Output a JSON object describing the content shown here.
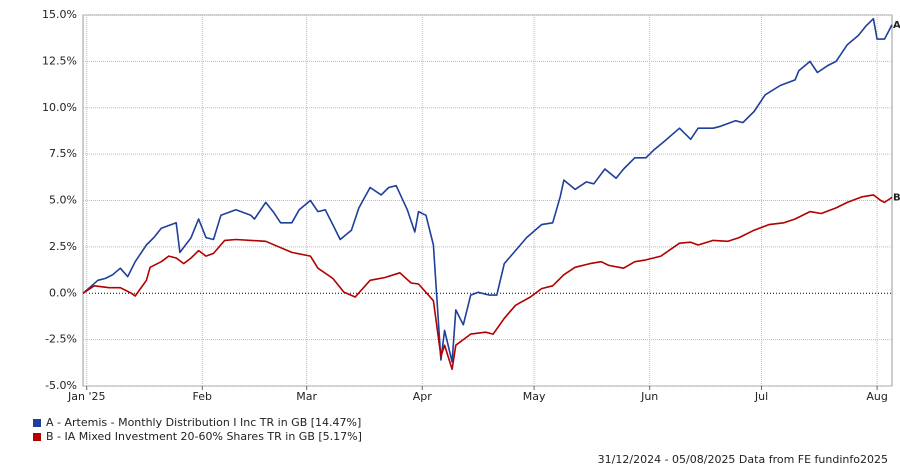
{
  "chart_data": {
    "type": "line",
    "xlim": [
      0,
      217
    ],
    "xticks": [
      {
        "value": 1,
        "label": "Jan '25"
      },
      {
        "value": 32,
        "label": "Feb"
      },
      {
        "value": 60,
        "label": "Mar"
      },
      {
        "value": 91,
        "label": "Apr"
      },
      {
        "value": 121,
        "label": "May"
      },
      {
        "value": 152,
        "label": "Jun"
      },
      {
        "value": 182,
        "label": "Jul"
      },
      {
        "value": 213,
        "label": "Aug"
      }
    ],
    "ylim": [
      -5,
      15
    ],
    "yticks": [
      {
        "value": -5,
        "label": "-5.0%"
      },
      {
        "value": -2.5,
        "label": "-2.5%"
      },
      {
        "value": 0,
        "label": "0.0%"
      },
      {
        "value": 2.5,
        "label": "2.5%"
      },
      {
        "value": 5,
        "label": "5.0%"
      },
      {
        "value": 7.5,
        "label": "7.5%"
      },
      {
        "value": 10,
        "label": "10.0%"
      },
      {
        "value": 12.5,
        "label": "12.5%"
      },
      {
        "value": 15,
        "label": "15.0%"
      }
    ],
    "grid": true,
    "series": [
      {
        "name": "A - Artemis - Monthly Distribution I Inc TR in GB [14.47%]",
        "end_label": "A",
        "color": "#1f3f99",
        "x": [
          0,
          4,
          6,
          8,
          10,
          12,
          14,
          17,
          19,
          21,
          25,
          26,
          29,
          31,
          33,
          35,
          37,
          41,
          45,
          46,
          49,
          51,
          53,
          56,
          58,
          61,
          63,
          65,
          67,
          69,
          72,
          74,
          77,
          80,
          82,
          84,
          87,
          89,
          90,
          92,
          94,
          96,
          97,
          99,
          100,
          102,
          104,
          106,
          109,
          111,
          113,
          116,
          119,
          123,
          126,
          128,
          129,
          132,
          135,
          137,
          140,
          143,
          145,
          148,
          151,
          153,
          156,
          160,
          163,
          165,
          169,
          171,
          175,
          177,
          180,
          183,
          187,
          191,
          192,
          195,
          197,
          200,
          202,
          205,
          208,
          210,
          212,
          213,
          215,
          217
        ],
        "values": [
          0,
          0.7,
          0.8,
          1.0,
          1.35,
          0.9,
          1.7,
          2.6,
          3.0,
          3.5,
          3.8,
          2.2,
          3.0,
          4.0,
          3.0,
          2.9,
          4.2,
          4.5,
          4.2,
          4.0,
          4.9,
          4.4,
          3.8,
          3.8,
          4.5,
          5.0,
          4.4,
          4.5,
          3.7,
          2.9,
          3.4,
          4.6,
          5.7,
          5.3,
          5.7,
          5.8,
          4.5,
          3.3,
          4.4,
          4.2,
          2.6,
          -3.6,
          -2.0,
          -3.7,
          -0.9,
          -1.7,
          -0.1,
          0.05,
          -0.1,
          -0.1,
          1.6,
          2.3,
          3.0,
          3.7,
          3.8,
          5.2,
          6.1,
          5.6,
          6.0,
          5.9,
          6.7,
          6.2,
          6.7,
          7.3,
          7.3,
          7.7,
          8.2,
          8.9,
          8.3,
          8.9,
          8.9,
          9.0,
          9.3,
          9.2,
          9.8,
          10.7,
          11.2,
          11.5,
          12.0,
          12.5,
          11.9,
          12.3,
          12.5,
          13.4,
          13.9,
          14.4,
          14.8,
          13.7,
          13.7,
          14.47
        ]
      },
      {
        "name": "B - IA Mixed Investment 20-60% Shares TR in GB [5.17%]",
        "end_label": "B",
        "color": "#b30000",
        "x": [
          0,
          3,
          7,
          10,
          13,
          14,
          17,
          18,
          21,
          23,
          25,
          27,
          29,
          31,
          33,
          35,
          38,
          41,
          49,
          56,
          61,
          63,
          67,
          70,
          73,
          77,
          81,
          85,
          88,
          90,
          94,
          96,
          97,
          99,
          100,
          102,
          104,
          108,
          110,
          113,
          116,
          120,
          123,
          126,
          129,
          132,
          136,
          139,
          141,
          145,
          148,
          151,
          155,
          160,
          163,
          165,
          169,
          173,
          176,
          180,
          184,
          188,
          191,
          195,
          198,
          202,
          205,
          209,
          212,
          214,
          215,
          217
        ],
        "values": [
          0,
          0.4,
          0.3,
          0.3,
          0,
          -0.15,
          0.7,
          1.4,
          1.7,
          2.0,
          1.9,
          1.6,
          1.9,
          2.3,
          2.0,
          2.15,
          2.85,
          2.9,
          2.8,
          2.2,
          2.0,
          1.35,
          0.8,
          0.05,
          -0.2,
          0.7,
          0.85,
          1.1,
          0.55,
          0.5,
          -0.4,
          -3.4,
          -2.8,
          -4.1,
          -2.8,
          -2.5,
          -2.2,
          -2.1,
          -2.2,
          -1.35,
          -0.65,
          -0.2,
          0.25,
          0.4,
          1.0,
          1.4,
          1.6,
          1.7,
          1.5,
          1.35,
          1.7,
          1.8,
          2.0,
          2.7,
          2.75,
          2.6,
          2.85,
          2.8,
          3.0,
          3.4,
          3.7,
          3.8,
          4.0,
          4.4,
          4.3,
          4.6,
          4.9,
          5.2,
          5.3,
          5.0,
          4.9,
          5.17
        ]
      }
    ],
    "source": "31/12/2024 - 05/08/2025 Data from FE fundinfo2025"
  }
}
